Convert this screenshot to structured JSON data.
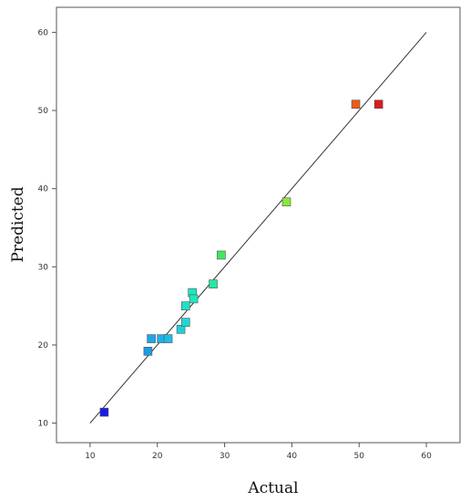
{
  "chart_data": {
    "type": "scatter",
    "xlabel": "Actual",
    "ylabel": "Predicted",
    "xlim": [
      5,
      65
    ],
    "ylim": [
      7.5,
      63.2
    ],
    "xticks": [
      10,
      20,
      30,
      40,
      50,
      60
    ],
    "yticks": [
      10,
      20,
      30,
      40,
      50,
      60
    ],
    "reference_line": {
      "from": [
        10,
        10
      ],
      "to": [
        60,
        60
      ],
      "color": "#333333"
    },
    "marker": "square",
    "points": [
      {
        "x": 12.1,
        "y": 11.4,
        "color": "#1a1ae6"
      },
      {
        "x": 18.6,
        "y": 19.2,
        "color": "#1f9ae6"
      },
      {
        "x": 19.1,
        "y": 20.8,
        "color": "#1fa6ea"
      },
      {
        "x": 20.6,
        "y": 20.8,
        "color": "#1fb2ea"
      },
      {
        "x": 21.6,
        "y": 20.8,
        "color": "#1fbce8"
      },
      {
        "x": 23.5,
        "y": 22.0,
        "color": "#1fd0d8"
      },
      {
        "x": 24.2,
        "y": 22.9,
        "color": "#1fd8d2"
      },
      {
        "x": 24.2,
        "y": 25.0,
        "color": "#1fe0c6"
      },
      {
        "x": 25.2,
        "y": 26.7,
        "color": "#1fe6be"
      },
      {
        "x": 25.4,
        "y": 25.9,
        "color": "#1fe6c2"
      },
      {
        "x": 28.3,
        "y": 27.8,
        "color": "#26e8a0"
      },
      {
        "x": 29.5,
        "y": 31.5,
        "color": "#3ee860"
      },
      {
        "x": 39.2,
        "y": 38.3,
        "color": "#8ae83a"
      },
      {
        "x": 49.5,
        "y": 50.8,
        "color": "#f05a1a"
      },
      {
        "x": 52.9,
        "y": 50.8,
        "color": "#dd1a1a"
      }
    ]
  }
}
